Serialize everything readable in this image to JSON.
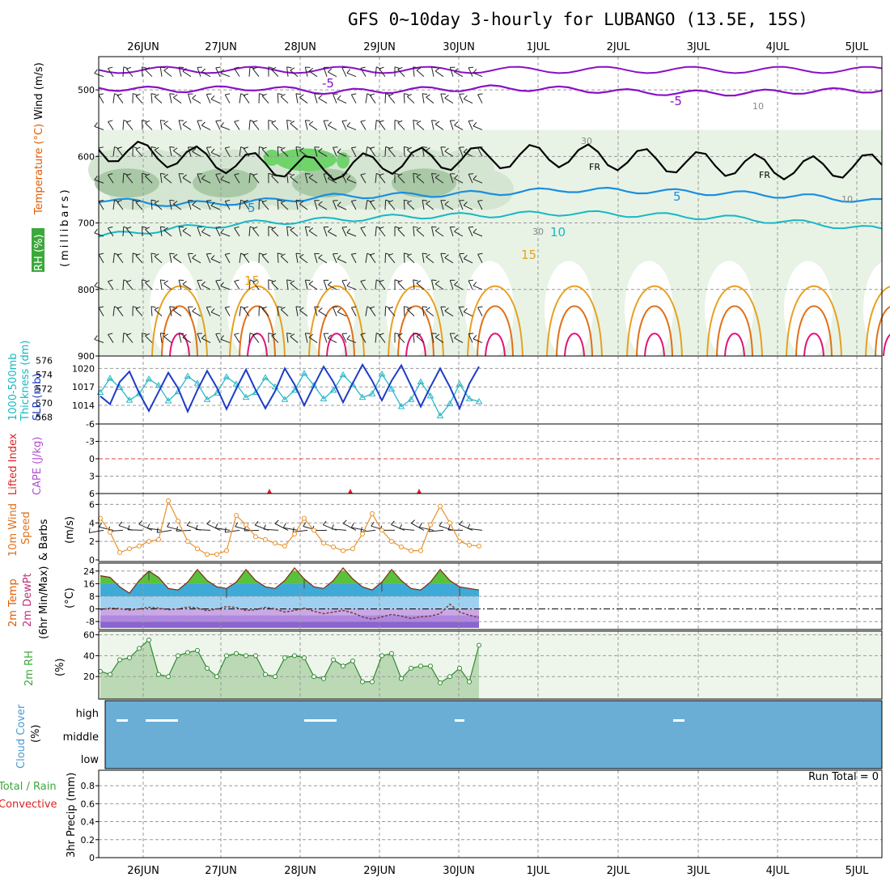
{
  "title": "GFS 0~10day 3-hourly for LUBANGO (13.5E, 15S)",
  "colors": {
    "purple": "#8a0fc8",
    "blue": "#1a8ee0",
    "cyan": "#16b8c4",
    "orange": "#e8a020",
    "dark_orange": "#e0701a",
    "magenta": "#e0147a",
    "slp": "#1e3cc8",
    "thick": "#2ab8c8",
    "rh_fill": "#3ca83c",
    "cloud": "#6aaed6",
    "wind": "#e8902a"
  },
  "chart_data": [
    {
      "type": "contour",
      "panel": "upper-air",
      "x": [
        "26JUN",
        "27JUN",
        "28JUN",
        "29JUN",
        "30JUN",
        "1JUL",
        "2JUL",
        "3JUL",
        "4JUL",
        "5JUL"
      ],
      "ylabel": "(millibars)",
      "yticks": [
        "500",
        "600",
        "700",
        "800",
        "900"
      ],
      "ylim": [
        450,
        900
      ],
      "legend": [
        "Wind (m/s)",
        "Temperature (°C)",
        "RH (%)"
      ],
      "contour_labels": [
        "-5",
        "-5",
        "FR",
        "FR",
        "5",
        "5",
        "10",
        "15",
        "15",
        "10",
        "30",
        "30",
        "10"
      ],
      "isotherms_mb": [
        {
          "name": "-5",
          "level": [
            497,
            500,
            497,
            503,
            500,
            497,
            499,
            504,
            505,
            502,
            500
          ]
        },
        {
          "name": "FR",
          "level": [
            590,
            600,
            612,
            618,
            605,
            602,
            598,
            606,
            612,
            618,
            612
          ]
        },
        {
          "name": "5",
          "level": [
            665,
            672,
            668,
            660,
            658,
            655,
            650,
            652,
            655,
            660,
            668
          ]
        },
        {
          "name": "10",
          "level": [
            720,
            708,
            700,
            695,
            690,
            688,
            685,
            688,
            692,
            700,
            710
          ]
        }
      ]
    },
    {
      "type": "line",
      "panel": "thickness-slp",
      "legend": [
        "1000-500mb Thickness (dm)",
        "SLP (mb)"
      ],
      "thickness_ticks": [
        "576",
        "574",
        "572",
        "570",
        "568"
      ],
      "slp_ticks": [
        "1020",
        "1017",
        "1014"
      ],
      "series": [
        {
          "name": "SLP (mb)",
          "values": [
            1015.5,
            1014.2,
            1017.8,
            1019.5,
            1016.0,
            1013.1,
            1016.2,
            1019.3,
            1016.8,
            1013.0,
            1016.5,
            1019.6,
            1016.9,
            1013.4,
            1016.7,
            1019.8,
            1016.5,
            1013.5,
            1016.3,
            1020.0,
            1017.4,
            1014.0,
            1017.2,
            1020.3,
            1017.8,
            1014.5,
            1017.6,
            1020.6,
            1018.0,
            1014.8,
            1018.0,
            1020.5,
            1017.2,
            1013.8,
            1017.0,
            1020.0,
            1017.0,
            1013.5,
            1017.5,
            1020.3
          ]
        },
        {
          "name": "1000-500mb Thickness (dm)",
          "values": [
            571.5,
            573.5,
            572.2,
            570.4,
            571.3,
            573.4,
            572.5,
            570.3,
            571.6,
            573.8,
            572.8,
            570.5,
            571.4,
            573.7,
            572.7,
            570.8,
            571.5,
            573.6,
            572.3,
            570.5,
            571.8,
            574.2,
            572.5,
            570.6,
            571.8,
            574.0,
            572.6,
            570.8,
            571.3,
            574.1,
            572.0,
            569.5,
            570.5,
            573.0,
            571.0,
            568.2,
            569.9,
            572.7,
            570.6,
            570.2
          ]
        }
      ]
    },
    {
      "type": "line",
      "panel": "cape-li",
      "legend": [
        "Lifted Index",
        "CAPE (J/kg)"
      ],
      "yticks": [
        "-6",
        "-3",
        "0",
        "3",
        "6"
      ],
      "ylim": [
        -6,
        6
      ],
      "markers": [
        {
          "x": "27JUN 15Z"
        },
        {
          "x": "28JUN 15Z"
        },
        {
          "x": "29JUN 12Z"
        }
      ]
    },
    {
      "type": "line",
      "panel": "wind",
      "ylabel": "(m/s)",
      "legend": [
        "10m Wind Speed",
        "& Barbs"
      ],
      "yticks": [
        "0",
        "2",
        "4",
        "6"
      ],
      "ylim": [
        0,
        7
      ],
      "series": [
        {
          "name": "10m Wind Speed",
          "values": [
            4.5,
            3.0,
            0.8,
            1.2,
            1.5,
            2.0,
            2.2,
            6.4,
            4.2,
            2.0,
            1.2,
            0.6,
            0.6,
            1.0,
            4.8,
            3.8,
            2.5,
            2.2,
            1.8,
            1.5,
            2.8,
            4.5,
            3.2,
            1.8,
            1.4,
            1.0,
            1.2,
            2.8,
            5.0,
            3.2,
            2.0,
            1.4,
            1.0,
            1.0,
            3.8,
            5.8,
            4.0,
            2.0,
            1.6,
            1.5
          ]
        }
      ]
    },
    {
      "type": "area",
      "panel": "temperature",
      "ylabel": "(°C)",
      "legend": [
        "2m Temp",
        "2m DewPt",
        "(6hr Min/Max)"
      ],
      "yticks": [
        "24",
        "16",
        "8",
        "0",
        "-8"
      ],
      "ylim": [
        -12,
        28
      ],
      "series": [
        {
          "name": "2m Temp",
          "values": [
            21,
            20,
            14,
            10,
            18,
            24,
            20,
            13,
            12,
            17,
            25,
            18,
            14,
            13,
            17,
            25,
            18,
            14,
            13,
            18,
            26,
            19,
            14,
            13,
            18,
            26,
            19,
            14,
            12,
            17,
            25,
            18,
            13,
            12,
            17,
            25,
            18,
            14,
            13,
            12
          ]
        },
        {
          "name": "2m DewPt",
          "values": [
            -0.5,
            0.5,
            0.2,
            -0.8,
            0.0,
            1.0,
            0.5,
            -0.5,
            0.0,
            1.2,
            0.6,
            -1.2,
            0.0,
            1.5,
            0.8,
            -1.0,
            -0.5,
            1.0,
            0.0,
            -2.0,
            -1.0,
            0.5,
            -1.5,
            -3.0,
            -2.0,
            -1.0,
            -2.5,
            -5.0,
            -6.5,
            -5.0,
            -3.5,
            -4.5,
            -6.0,
            -5.0,
            -4.5,
            -3.0,
            3.0,
            -2.0,
            -4.0,
            -5.5
          ]
        }
      ]
    },
    {
      "type": "area",
      "panel": "rh",
      "ylabel": "(%)",
      "legend": [
        "2m RH"
      ],
      "yticks": [
        "20",
        "40",
        "60"
      ],
      "ylim": [
        0,
        62
      ],
      "series": [
        {
          "name": "2m RH",
          "values": [
            25,
            22,
            36,
            38,
            47,
            55,
            22,
            20,
            40,
            43,
            45,
            28,
            20,
            40,
            42,
            40,
            40,
            22,
            20,
            38,
            40,
            38,
            20,
            18,
            36,
            30,
            35,
            15,
            15,
            40,
            42,
            18,
            28,
            30,
            30,
            14,
            20,
            28,
            15,
            50
          ]
        }
      ]
    },
    {
      "type": "heatmap",
      "panel": "cloud",
      "ylabel": "(%)",
      "legend": [
        "Cloud Cover"
      ],
      "yticks": [
        "high",
        "middle",
        "low"
      ]
    },
    {
      "type": "bar",
      "panel": "precip",
      "ylabel": "(mm)",
      "legend": [
        "Total / Rain",
        "Convective",
        "3hr Precip"
      ],
      "yticks": [
        "0",
        "0.2",
        "0.4",
        "0.6",
        "0.8"
      ],
      "ylim": [
        0,
        0.9
      ],
      "values": [],
      "run_total": "Run Total = 0"
    }
  ],
  "labels": {
    "wind_lbl": "Wind (m/s)",
    "temp_lbl": "Temperature (°C)",
    "rh_lbl": "RH (%)",
    "mb_lbl": "(millibars)",
    "thick1": "1000-500mb",
    "thick2": "Thickness (dm)",
    "slp_lbl": "SLP (mb)",
    "li_lbl": "Lifted Index",
    "cape_lbl": "CAPE (J/kg)",
    "w10a": "10m Wind",
    "w10b": "Speed",
    "w10c": "& Barbs",
    "w10u": "(m/s)",
    "t2a": "2m Temp",
    "t2b": "2m DewPt",
    "t2c": "(6hr Min/Max)",
    "t2u": "(°C)",
    "rh2": "2m RH",
    "rh2u": "(%)",
    "cc1": "Cloud Cover",
    "cc2": "(%)",
    "pr1": "Total / Rain",
    "pr2": "Convective",
    "pr3": "3hr Precip (mm)",
    "run_total": "Run Total = 0"
  }
}
